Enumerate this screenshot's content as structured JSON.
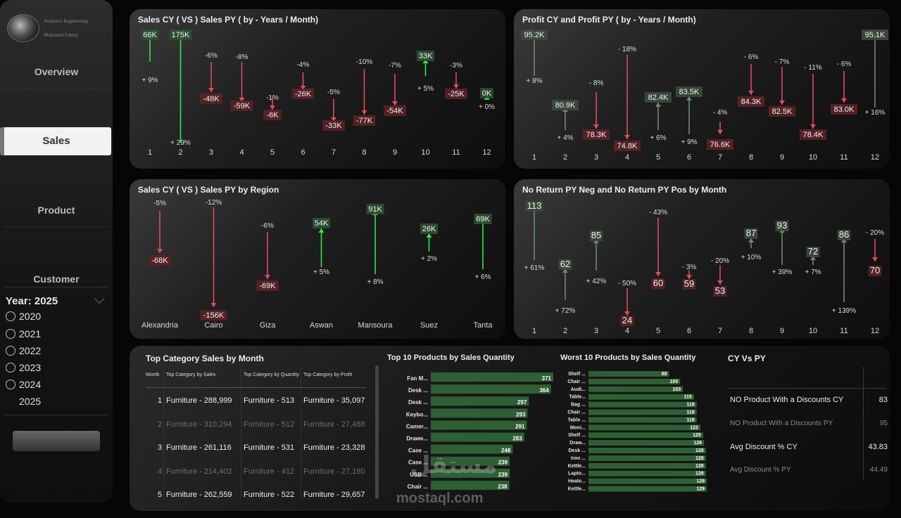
{
  "sidebar": {
    "logo_line1": "Analytics Engineering",
    "logo_line2": "Mohamed Fahmy",
    "nav": [
      "Overview",
      "Sales",
      "Product",
      "Customer"
    ],
    "active_nav": "Sales",
    "year_title": "Year: 2025",
    "years": [
      "2020",
      "2021",
      "2022",
      "2023",
      "2024",
      "2025"
    ],
    "selected_year": "2025"
  },
  "colors": {
    "up": "#2fe84a",
    "down": "#e04a5a",
    "up_muted": "#6e8a6e",
    "down_muted": "#b84a55",
    "bar": "#2f5f35"
  },
  "charts": {
    "sales_month": {
      "title": "Sales CY ( VS ) Sales PY ( by - Years / Month)",
      "chart_data": {
        "type": "bar",
        "categories": [
          "1",
          "2",
          "3",
          "4",
          "5",
          "6",
          "7",
          "8",
          "9",
          "10",
          "11",
          "12"
        ],
        "values_k": [
          66,
          175,
          -48,
          -59,
          -6,
          -26,
          -33,
          -77,
          -54,
          33,
          -25,
          0
        ],
        "value_labels": [
          "66K",
          "175K",
          "-48K",
          "-59K",
          "-6K",
          "-26K",
          "-33K",
          "-77K",
          "-54K",
          "33K",
          "-25K",
          "0K"
        ],
        "pct_labels": [
          "+ 9%",
          "+ 29%",
          "-6%",
          "-8%",
          "-1%",
          "-4%",
          "-5%",
          "-10%",
          "-7%",
          "+ 5%",
          "-3%",
          "+ 0%"
        ]
      }
    },
    "profit_month": {
      "title": "Profit CY and Profit PY ( by - Years / Month)",
      "chart_data": {
        "type": "bar",
        "categories": [
          "1",
          "2",
          "3",
          "4",
          "5",
          "6",
          "7",
          "8",
          "9",
          "10",
          "11",
          "12"
        ],
        "value_labels": [
          "95.2K",
          "80.9K",
          "78.3K",
          "74.8K",
          "82.4K",
          "83.5K",
          "76.6K",
          "84.3K",
          "82.5K",
          "78.4K",
          "83.0K",
          "95.1K"
        ],
        "pct_labels": [
          "+ 8%",
          "+ 4%",
          "- 8%",
          "- 18%",
          "+ 6%",
          "+ 9%",
          "- 4%",
          "- 6%",
          "- 7%",
          "- 11%",
          "- 6%",
          "+ 16%"
        ]
      }
    },
    "sales_region": {
      "title": "Sales CY ( VS ) Sales PY by Region",
      "chart_data": {
        "type": "bar",
        "categories": [
          "Alexandria",
          "Cairo",
          "Giza",
          "Aswan",
          "Mansoura",
          "Suez",
          "Tanta"
        ],
        "values_k": [
          -68,
          -156,
          -69,
          54,
          91,
          26,
          69
        ],
        "value_labels": [
          "-68K",
          "-156K",
          "-69K",
          "54K",
          "91K",
          "26K",
          "69K"
        ],
        "pct_labels": [
          "-5%",
          "-12%",
          "-6%",
          "+ 5%",
          "+ 8%",
          "+ 2%",
          "+ 6%"
        ]
      }
    },
    "returns_month": {
      "title": "No Return PY Neg and No Return PY Pos by Month",
      "chart_data": {
        "type": "bar",
        "categories": [
          "1",
          "2",
          "3",
          "4",
          "5",
          "6",
          "7",
          "8",
          "9",
          "10",
          "11",
          "12"
        ],
        "values": [
          113,
          62,
          85,
          24,
          60,
          59,
          53,
          87,
          93,
          72,
          86,
          70
        ],
        "value_labels": [
          "113",
          "62",
          "85",
          "24",
          "60",
          "59",
          "53",
          "87",
          "93",
          "72",
          "86",
          "70"
        ],
        "pct_labels": [
          "+ 61%",
          "+ 72%",
          "+ 42%",
          "- 50%",
          "- 43%",
          "- 3%",
          "- 20%",
          "+ 10%",
          "+ 39%",
          "+ 7%",
          "+ 139%",
          "- 20%"
        ]
      }
    }
  },
  "top_category": {
    "title": "Top Category Sales by Month",
    "headers": [
      "Month",
      "Top Category by Sales",
      "Top Category by Quantity",
      "Top Category by Profit"
    ],
    "rows": [
      [
        "1",
        "Furniture - 288,999",
        "Furniture - 513",
        "Furniture - 35,097"
      ],
      [
        "2",
        "Furniture - 310,294",
        "Furniture - 512",
        "Furniture - 27,488"
      ],
      [
        "3",
        "Furniture - 261,116",
        "Furniture - 531",
        "Furniture - 23,328"
      ],
      [
        "4",
        "Furniture - 214,402",
        "Furniture - 412",
        "Furniture - 27,180"
      ],
      [
        "5",
        "Furniture - 262,559",
        "Furniture - 522",
        "Furniture - 29,657"
      ]
    ]
  },
  "top10": {
    "title": "Top 10 Products by Sales Quantity",
    "chart_data": {
      "type": "bar",
      "categories": [
        "Fan M...",
        "Desk ...",
        "Desk ...",
        "Keybo...",
        "Camer...",
        "Drawe...",
        "Case ...",
        "Case ...",
        "USB ...",
        "Chair ..."
      ],
      "values": [
        371,
        364,
        297,
        293,
        291,
        283,
        248,
        239,
        239,
        238
      ]
    }
  },
  "worst10": {
    "title": "Worst 10 Products by Sales Quantity",
    "chart_data": {
      "type": "bar",
      "categories": [
        "Shelf ...",
        "Chair ...",
        "Audi...",
        "Table...",
        "Bag ...",
        "Chair ...",
        "Table ...",
        "Moni...",
        "Shelf ...",
        "Draw...",
        "Desk ...",
        "Iron ...",
        "Kettle...",
        "Lapto...",
        "Heate...",
        "Kettle..."
      ],
      "values": [
        88,
        100,
        103,
        115,
        118,
        118,
        118,
        122,
        125,
        126,
        128,
        128,
        128,
        128,
        129,
        129
      ]
    }
  },
  "cy_vs_py": {
    "title": "CY Vs PY",
    "rows": [
      {
        "label": "NO Product With a Discounts CY",
        "value": "83"
      },
      {
        "label": "NO Product With a Discounts PY",
        "value": "95"
      },
      {
        "label": "Avg Discount % CY",
        "value": "43.83"
      },
      {
        "label": "Avg Discount % PY",
        "value": "44.49"
      }
    ]
  },
  "watermark": {
    "text1": "مستقل",
    "text2": "mostaql.com"
  }
}
